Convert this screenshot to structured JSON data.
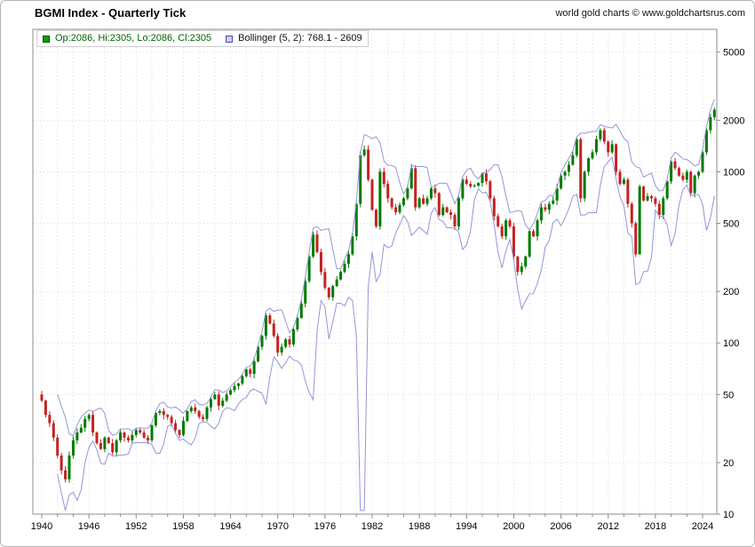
{
  "header": {
    "title": "BGMI Index - Quarterly Tick",
    "copyright": "world gold charts © www.goldchartsrus.com"
  },
  "legend": {
    "ohlc_label": "Op:2086, Hi:2305, Lo:2086, Cl:2305",
    "bollinger_label": "Bollinger (5, 2): 768.1 - 2609"
  },
  "colors": {
    "up": "#007a00",
    "down": "#c42222",
    "band": "#9595da",
    "grid": "#dcdcdc",
    "border": "#8c8c8c",
    "axis_text": "#000000"
  },
  "chart_data": {
    "type": "candlestick",
    "title": "BGMI Index - Quarterly Tick",
    "y_scale": "log",
    "ylabel": "",
    "xlabel": "",
    "y_ticks": [
      5000,
      2000,
      1000,
      500,
      200,
      100,
      50,
      20,
      10
    ],
    "x_ticks": [
      1940,
      1946,
      1952,
      1958,
      1964,
      1970,
      1976,
      1982,
      1988,
      1994,
      2000,
      2006,
      2012,
      2018,
      2024
    ],
    "y_range": [
      10,
      6800
    ],
    "x_range": [
      1938.9,
      2025.9
    ],
    "grid": true,
    "legend_position": "top-left",
    "start_year": 1940,
    "points_per_year": 2,
    "first_open": 50,
    "wick_factor": 0.05,
    "overlay": {
      "name": "Bollinger",
      "period": 5,
      "stddev": 2,
      "last_range": [
        768.1,
        2609
      ]
    },
    "last_bar": {
      "open": 2086,
      "high": 2305,
      "low": 2086,
      "close": 2305
    },
    "closes": [
      46,
      38,
      34,
      28,
      22,
      18,
      16,
      22,
      27,
      30,
      32,
      36,
      38,
      30,
      26,
      24,
      28,
      26,
      23,
      27,
      30,
      28,
      27,
      29,
      31,
      30,
      28,
      27,
      33,
      39,
      40,
      38,
      37,
      34,
      31,
      29,
      35,
      40,
      42,
      40,
      37,
      36,
      42,
      47,
      50,
      43,
      46,
      50,
      53,
      56,
      58,
      64,
      70,
      66,
      78,
      95,
      110,
      145,
      130,
      110,
      88,
      95,
      105,
      98,
      120,
      140,
      170,
      230,
      320,
      430,
      340,
      260,
      210,
      185,
      215,
      235,
      260,
      290,
      330,
      420,
      650,
      1250,
      1350,
      900,
      600,
      480,
      1000,
      850,
      700,
      620,
      580,
      640,
      700,
      800,
      1050,
      620,
      700,
      650,
      700,
      800,
      750,
      560,
      620,
      580,
      560,
      480,
      700,
      900,
      850,
      820,
      830,
      860,
      980,
      880,
      700,
      550,
      480,
      420,
      520,
      480,
      320,
      260,
      280,
      320,
      450,
      420,
      520,
      620,
      600,
      650,
      680,
      800,
      950,
      1000,
      1100,
      1250,
      1550,
      700,
      1000,
      1200,
      1300,
      1550,
      1750,
      1500,
      1300,
      1450,
      1000,
      850,
      900,
      650,
      500,
      330,
      820,
      680,
      720,
      700,
      650,
      560,
      700,
      880,
      1150,
      1050,
      950,
      900,
      1000,
      750,
      950,
      1000,
      1300,
      1750,
      2086,
      2305
    ]
  }
}
